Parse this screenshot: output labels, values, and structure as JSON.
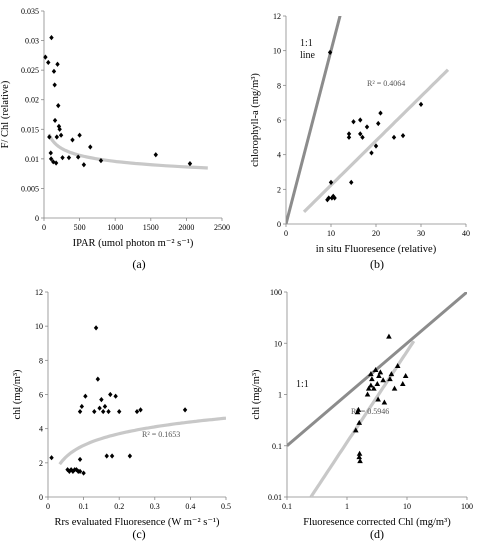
{
  "chart_data": [
    {
      "id": "a",
      "type": "scatter",
      "panel_label": "(a)",
      "xlabel": "IPAR (umol photon m⁻² s⁻¹)",
      "ylabel": "F/ Chl (relative)",
      "xlim": [
        0,
        2500
      ],
      "ylim": [
        0,
        0.035
      ],
      "xticks": [
        0,
        500,
        1000,
        1500,
        2000,
        2500
      ],
      "yticks": [
        0,
        0.005,
        0.01,
        0.015,
        0.02,
        0.025,
        0.03,
        0.035
      ],
      "ytick_labels": [
        "0",
        "0.005",
        "0.01",
        "0.015",
        "0.02",
        "0.025",
        "0.03",
        "0.035"
      ],
      "marker": "diamond",
      "points": [
        [
          20,
          0.0272
        ],
        [
          60,
          0.0263
        ],
        [
          75,
          0.0137
        ],
        [
          95,
          0.011
        ],
        [
          100,
          0.01
        ],
        [
          105,
          0.0305
        ],
        [
          130,
          0.0095
        ],
        [
          140,
          0.0248
        ],
        [
          150,
          0.0225
        ],
        [
          155,
          0.0165
        ],
        [
          170,
          0.0093
        ],
        [
          180,
          0.0137
        ],
        [
          190,
          0.026
        ],
        [
          200,
          0.019
        ],
        [
          210,
          0.0155
        ],
        [
          220,
          0.015
        ],
        [
          240,
          0.014
        ],
        [
          260,
          0.0102
        ],
        [
          350,
          0.0102
        ],
        [
          400,
          0.0132
        ],
        [
          480,
          0.0103
        ],
        [
          500,
          0.014
        ],
        [
          560,
          0.009
        ],
        [
          650,
          0.012
        ],
        [
          800,
          0.0097
        ],
        [
          1570,
          0.0107
        ],
        [
          2050,
          0.0092
        ]
      ],
      "fit": {
        "type": "power",
        "a": 0.0266,
        "b": -0.148,
        "x_from": 70,
        "x_to": 2300
      }
    },
    {
      "id": "b",
      "type": "scatter",
      "panel_label": "(b)",
      "xlabel": "in situ Fluoresence  (relative)",
      "ylabel": "chlorophyll-a (mg/m³)",
      "xlim": [
        0,
        40
      ],
      "ylim": [
        0,
        12
      ],
      "xticks": [
        0,
        10,
        20,
        30,
        40
      ],
      "yticks": [
        0,
        2,
        4,
        6,
        8,
        10,
        12
      ],
      "marker": "diamond",
      "points": [
        [
          9.2,
          1.4
        ],
        [
          9.5,
          1.5
        ],
        [
          10,
          2.4
        ],
        [
          10.2,
          1.5
        ],
        [
          10.5,
          1.6
        ],
        [
          10.8,
          1.5
        ],
        [
          9.8,
          9.9
        ],
        [
          14,
          5.0
        ],
        [
          14,
          5.2
        ],
        [
          14.5,
          2.4
        ],
        [
          15,
          5.9
        ],
        [
          16.5,
          6.0
        ],
        [
          16.5,
          5.2
        ],
        [
          17,
          5.0
        ],
        [
          18,
          5.6
        ],
        [
          19,
          4.1
        ],
        [
          20,
          4.5
        ],
        [
          20.5,
          5.8
        ],
        [
          21,
          6.4
        ],
        [
          24,
          5.0
        ],
        [
          26,
          5.1
        ],
        [
          30,
          6.9
        ]
      ],
      "one_to_one": {
        "x_from": 0,
        "x_to": 12.7,
        "label": "1:1\nline"
      },
      "fit": {
        "type": "linear",
        "x_from": 4,
        "x_to": 36,
        "y_from": 0.7,
        "y_to": 8.9
      },
      "r2": "R² = 0.4064"
    },
    {
      "id": "c",
      "type": "scatter",
      "panel_label": "(c)",
      "xlabel": "Rrs evaluated Fluoresence  (W m⁻² s⁻¹)",
      "ylabel": "chl (mg/m³)",
      "xlim": [
        0,
        0.5
      ],
      "ylim": [
        0,
        12
      ],
      "xticks": [
        0,
        0.1,
        0.2,
        0.3,
        0.4,
        0.5
      ],
      "xtick_labels": [
        "0",
        "0.1",
        "0.2",
        "0.3",
        "0.4",
        "0.5"
      ],
      "yticks": [
        0,
        2,
        4,
        6,
        8,
        10,
        12
      ],
      "marker": "diamond",
      "points": [
        [
          0.01,
          2.3
        ],
        [
          0.055,
          1.6
        ],
        [
          0.06,
          1.5
        ],
        [
          0.065,
          1.6
        ],
        [
          0.07,
          1.5
        ],
        [
          0.075,
          1.6
        ],
        [
          0.08,
          1.6
        ],
        [
          0.085,
          1.5
        ],
        [
          0.09,
          2.2
        ],
        [
          0.09,
          1.5
        ],
        [
          0.1,
          1.4
        ],
        [
          0.09,
          5.0
        ],
        [
          0.095,
          5.3
        ],
        [
          0.105,
          5.9
        ],
        [
          0.13,
          5.0
        ],
        [
          0.135,
          9.9
        ],
        [
          0.14,
          6.9
        ],
        [
          0.145,
          5.2
        ],
        [
          0.15,
          5.7
        ],
        [
          0.155,
          5.0
        ],
        [
          0.16,
          5.3
        ],
        [
          0.165,
          2.4
        ],
        [
          0.17,
          5.0
        ],
        [
          0.175,
          6.0
        ],
        [
          0.18,
          2.4
        ],
        [
          0.19,
          5.9
        ],
        [
          0.2,
          5.0
        ],
        [
          0.23,
          2.4
        ],
        [
          0.25,
          5.0
        ],
        [
          0.26,
          5.1
        ],
        [
          0.385,
          5.1
        ]
      ],
      "fit": {
        "type": "log",
        "a": 5.3,
        "b": 0.99,
        "x_from": 0.033,
        "x_to": 0.5
      },
      "r2": "R² = 0.1653"
    },
    {
      "id": "d",
      "type": "scatter",
      "panel_label": "(d)",
      "xlabel": "Fluoresence corrected Chl (mg/m³)",
      "ylabel": "chl (mg/m³)",
      "xscale": "log",
      "yscale": "log",
      "xlim": [
        0.1,
        100
      ],
      "ylim": [
        0.01,
        100
      ],
      "xticks": [
        0.1,
        1,
        10,
        100
      ],
      "xtick_labels": [
        "0.1",
        "1",
        "10",
        "100"
      ],
      "yticks": [
        0.01,
        0.1,
        1,
        10,
        100
      ],
      "ytick_labels": [
        "0.01",
        "0.1",
        "1",
        "10",
        "100"
      ],
      "marker": "triangle",
      "points": [
        [
          1.4,
          0.2
        ],
        [
          1.5,
          0.45
        ],
        [
          1.55,
          0.5
        ],
        [
          1.6,
          0.28
        ],
        [
          1.6,
          0.06
        ],
        [
          1.62,
          0.07
        ],
        [
          1.65,
          0.05
        ],
        [
          2.2,
          1.0
        ],
        [
          2.3,
          1.3
        ],
        [
          2.5,
          1.5
        ],
        [
          2.5,
          2.5
        ],
        [
          2.6,
          2.0
        ],
        [
          2.8,
          1.3
        ],
        [
          3.0,
          3.0
        ],
        [
          3.2,
          1.6
        ],
        [
          3.3,
          0.8
        ],
        [
          3.4,
          2.3
        ],
        [
          3.6,
          2.7
        ],
        [
          4.0,
          1.9
        ],
        [
          4.2,
          0.7
        ],
        [
          5.0,
          13.5
        ],
        [
          5.2,
          2.0
        ],
        [
          5.5,
          2.5
        ],
        [
          6.2,
          1.3
        ],
        [
          7.0,
          3.6
        ],
        [
          8.5,
          1.6
        ],
        [
          9.5,
          2.3
        ]
      ],
      "one_to_one": {
        "x_from": 0.1,
        "x_to": 100,
        "label": "1:1"
      },
      "fit": {
        "type": "power",
        "x_from": 0.25,
        "x_to": 13,
        "y_from": 0.01,
        "y_to": 11
      },
      "r2": "R² = 0.5946"
    }
  ]
}
